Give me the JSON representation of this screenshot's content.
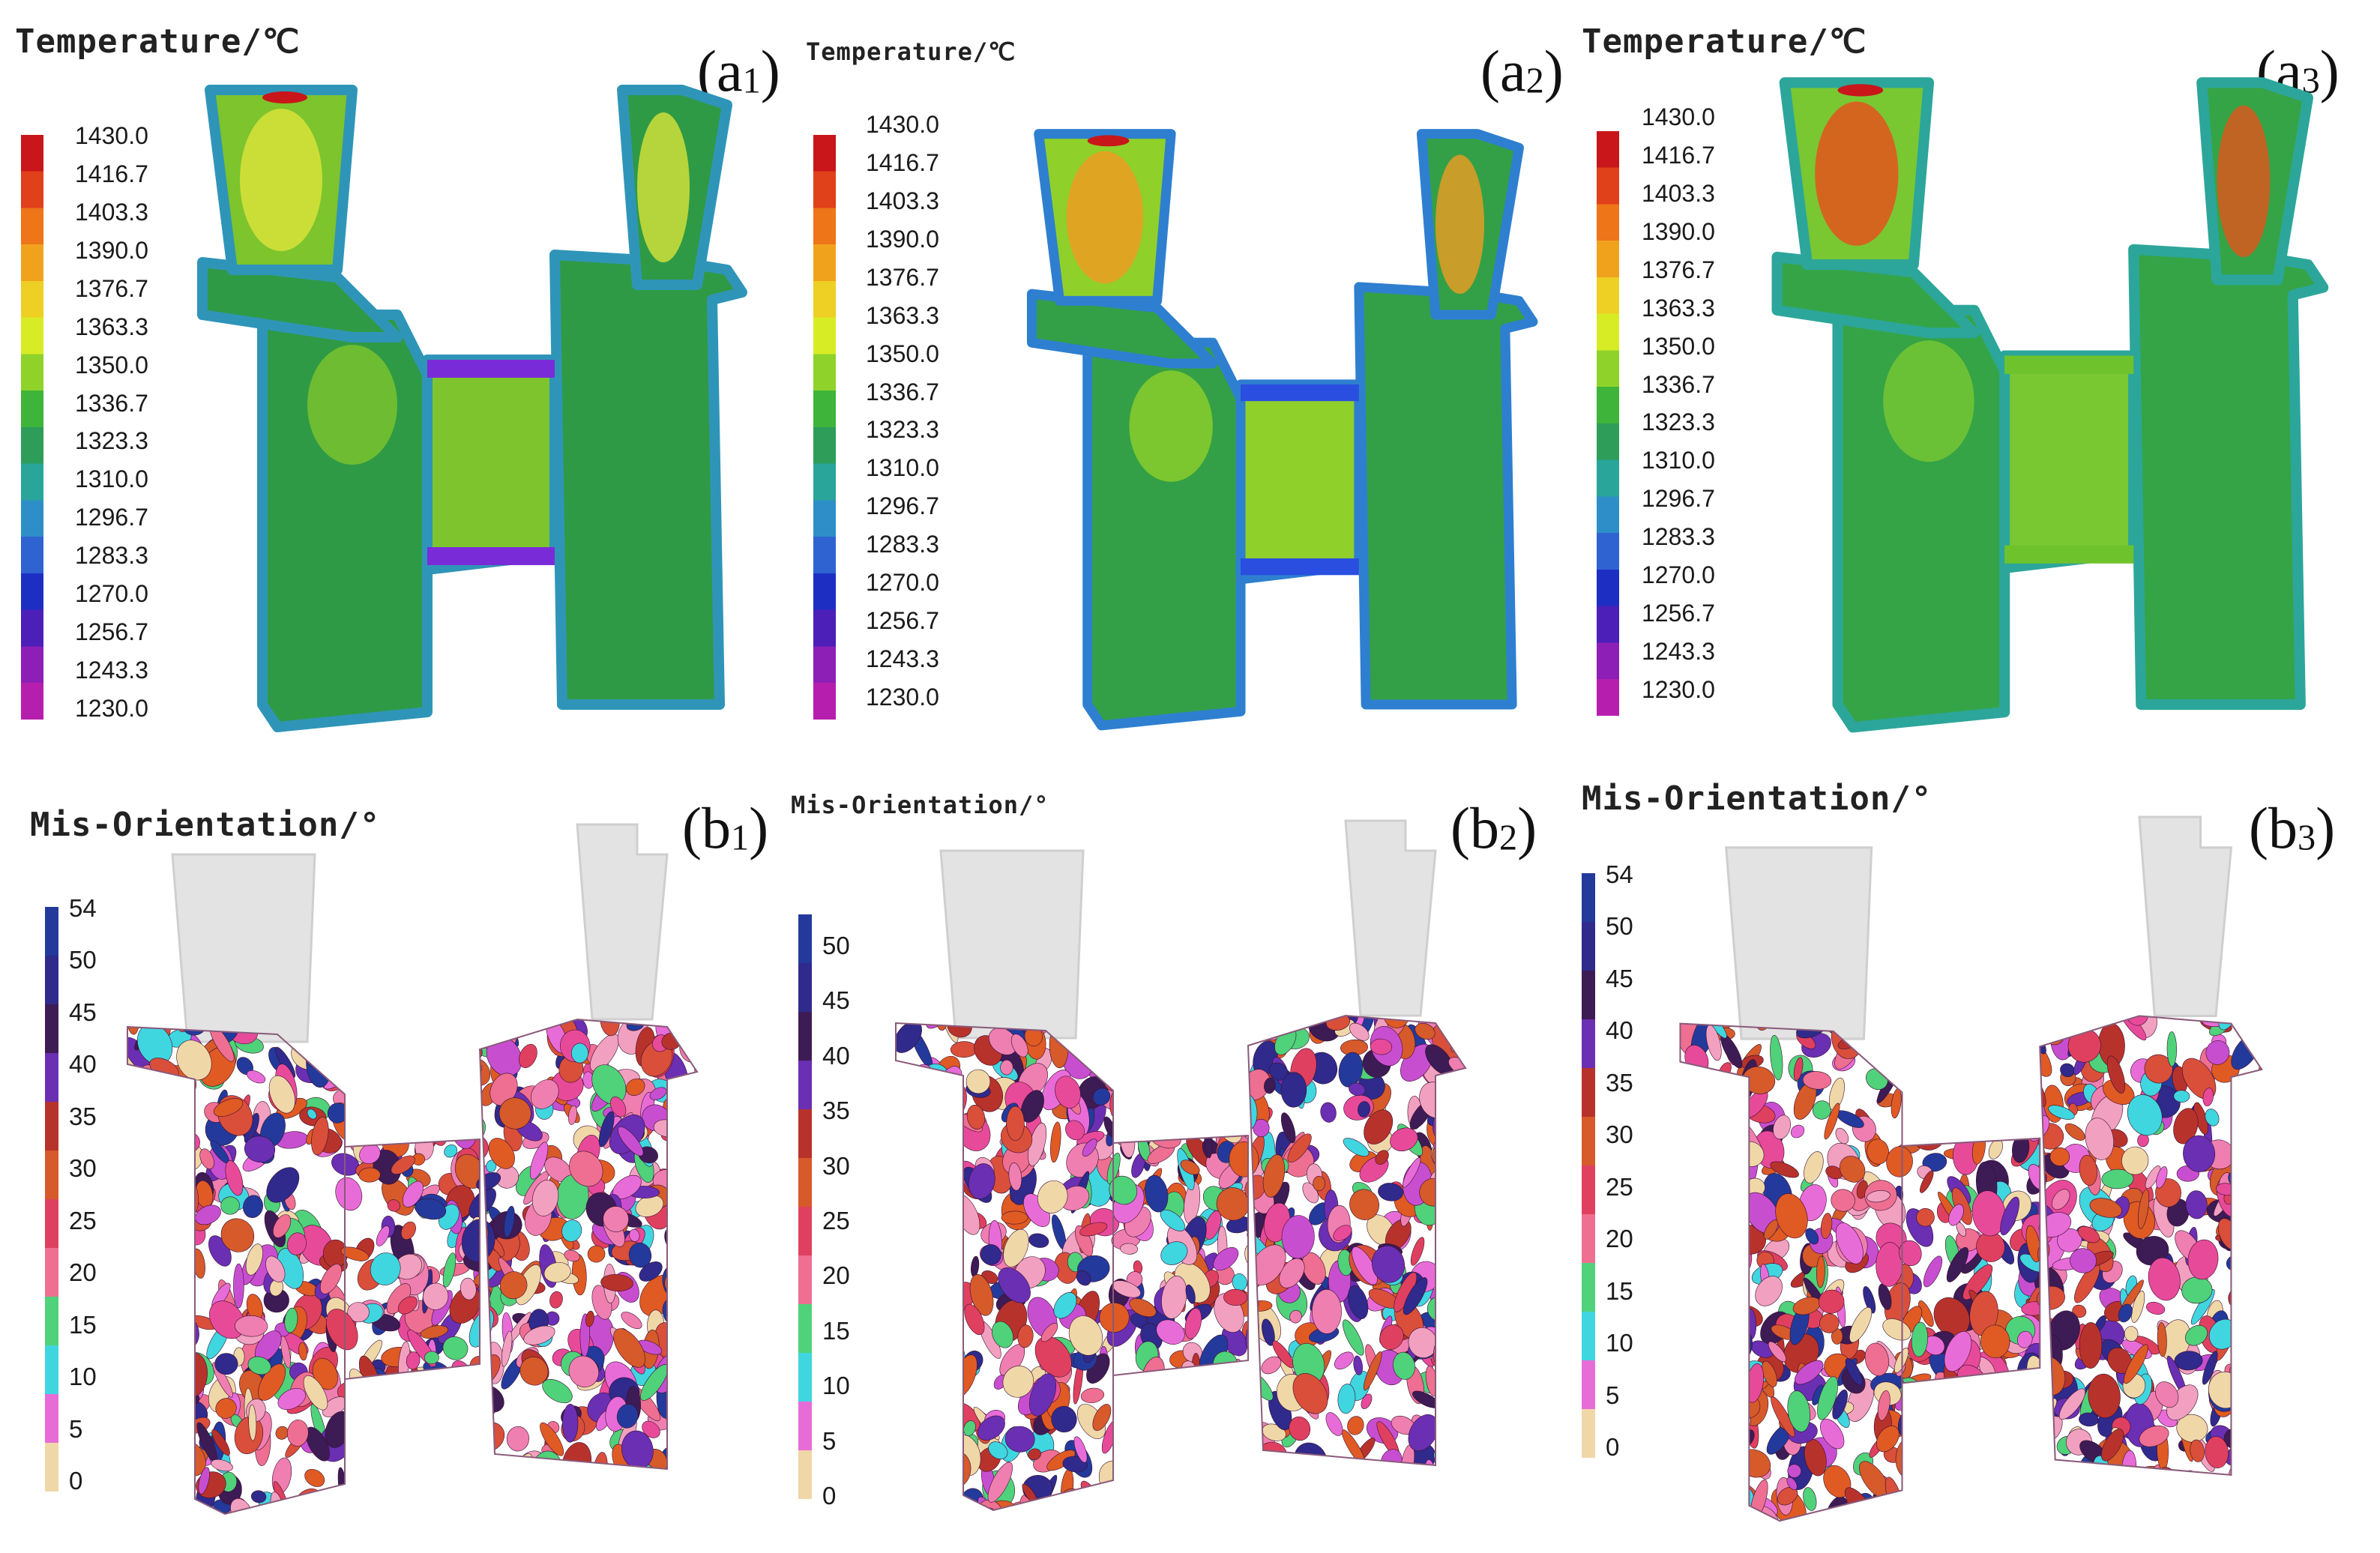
{
  "temp_panels": [
    {
      "label_main": "(a",
      "label_sub": "1",
      "label_end": ")",
      "title": "Temperature/℃",
      "scheme": "low"
    },
    {
      "label_main": "(a",
      "label_sub": "2",
      "label_end": ")",
      "title": "Temperature/℃",
      "scheme": "mid"
    },
    {
      "label_main": "(a",
      "label_sub": "3",
      "label_end": ")",
      "title": "Temperature/℃",
      "scheme": "high"
    }
  ],
  "mis_panels": [
    {
      "label_main": "(b",
      "label_sub": "1",
      "label_end": ")",
      "title": "Mis-Orientation/°",
      "scale": "mis_a"
    },
    {
      "label_main": "(b",
      "label_sub": "2",
      "label_end": ")",
      "title": "Mis-Orientation/°",
      "scale": "mis_b"
    },
    {
      "label_main": "(b",
      "label_sub": "3",
      "label_end": ")",
      "title": "Mis-Orientation/°",
      "scale": "mis_a"
    }
  ],
  "temperature_scale": {
    "ticks": [
      "1430.0",
      "1416.7",
      "1403.3",
      "1390.0",
      "1376.7",
      "1363.3",
      "1350.0",
      "1336.7",
      "1323.3",
      "1310.0",
      "1296.7",
      "1283.3",
      "1270.0",
      "1256.7",
      "1243.3",
      "1230.0"
    ],
    "colors": [
      "#c8161a",
      "#e0401a",
      "#ee7518",
      "#f1a21d",
      "#eecf24",
      "#d8ec25",
      "#8fd32a",
      "#3fb43a",
      "#2e9d5a",
      "#2aa59a",
      "#2e8fc8",
      "#2f63d2",
      "#1d2fc3",
      "#4b1fb8",
      "#8e1fb6",
      "#b61fae"
    ]
  },
  "mis_scales": {
    "mis_a": {
      "ticks": [
        "54",
        "50",
        "45",
        "40",
        "35",
        "30",
        "25",
        "20",
        "15",
        "10",
        "5",
        "0"
      ]
    },
    "mis_b": {
      "ticks": [
        "50",
        "45",
        "40",
        "35",
        "30",
        "25",
        "20",
        "15",
        "10",
        "5",
        "0"
      ]
    }
  },
  "mis_colors": [
    "#233a9c",
    "#2f2a8c",
    "#3d1b55",
    "#6a2fb3",
    "#b8322c",
    "#d65a2a",
    "#e0405f",
    "#ee6f91",
    "#4fd27a",
    "#3fd6e0",
    "#e86cd8",
    "#f0d7a8"
  ],
  "field_colors": {
    "low": {
      "body": "#2f9a45",
      "patch": "#7dc42d",
      "edge": "#2f95b8",
      "cold": "#7a2bd8",
      "hot": "#d8e33a"
    },
    "mid": {
      "body": "#33a047",
      "patch": "#8fd02b",
      "edge": "#2e7fd0",
      "cold": "#2a4ee0",
      "hot": "#ee9c22"
    },
    "high": {
      "body": "#35a446",
      "patch": "#79c832",
      "edge": "#2ca69a",
      "cold": "#6ec32c",
      "hot": "#e4541c"
    }
  }
}
